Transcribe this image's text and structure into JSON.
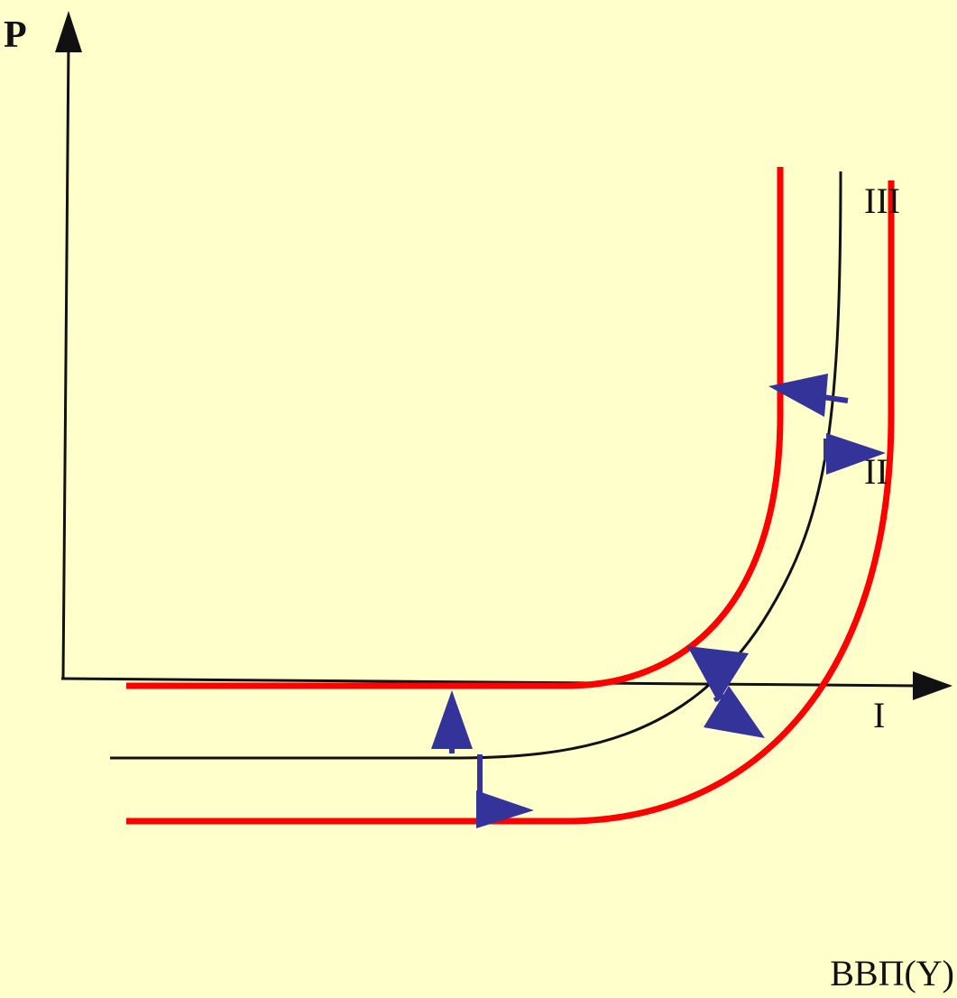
{
  "axes": {
    "y_label": "P",
    "x_label": "ВВП(Y)"
  },
  "segments": [
    {
      "label": "III"
    },
    {
      "label": "II"
    },
    {
      "label": "I"
    }
  ],
  "colors": {
    "background": "#FFFFCC",
    "axis": "#111111",
    "as_curve": "#111111",
    "shifted_curves": "#FF0000",
    "arrows": "#333399"
  }
}
